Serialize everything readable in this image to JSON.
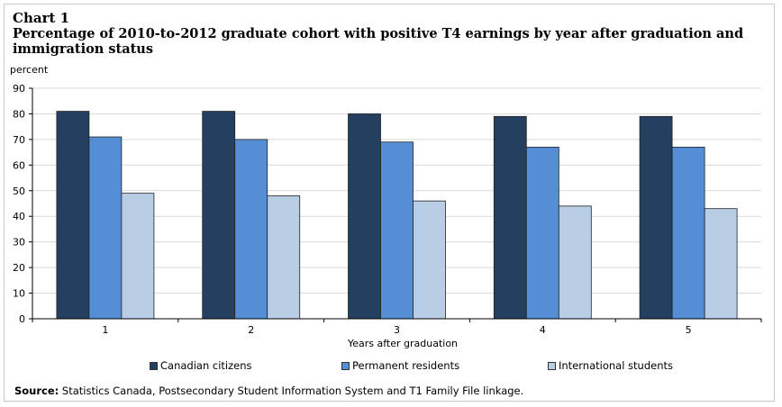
{
  "header": {
    "chart_number": "Chart 1",
    "title": "Percentage of 2010-to-2012 graduate cohort with positive T4 earnings by year after graduation and immigration status"
  },
  "footer": {
    "source_label": "Source:",
    "source_text": "Statistics Canada, Postsecondary Student Information System and T1 Family File linkage."
  },
  "colors": {
    "canadian_citizens": "#243f5f",
    "permanent_residents": "#558ed5",
    "international_students": "#b9cde5"
  },
  "chart_data": {
    "type": "bar",
    "ylabel": "percent",
    "xlabel": "Years after graduation",
    "ylim": [
      0,
      90
    ],
    "yticks": [
      0,
      10,
      20,
      30,
      40,
      50,
      60,
      70,
      80,
      90
    ],
    "categories": [
      "1",
      "2",
      "3",
      "4",
      "5"
    ],
    "grid": true,
    "legend_position": "bottom",
    "series": [
      {
        "name": "Canadian citizens",
        "values": [
          81,
          81,
          80,
          79,
          79
        ]
      },
      {
        "name": "Permanent residents",
        "values": [
          71,
          70,
          69,
          67,
          67
        ]
      },
      {
        "name": "International students",
        "values": [
          49,
          48,
          46,
          44,
          43
        ]
      }
    ]
  }
}
